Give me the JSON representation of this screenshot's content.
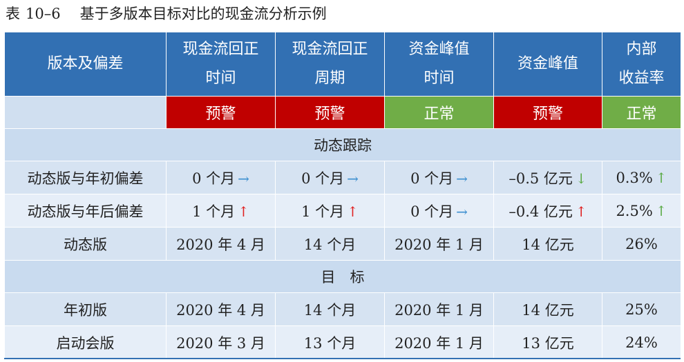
{
  "caption": {
    "label": "表",
    "code": "10–6",
    "title": "基于多版本目标对比的现金流分析示例"
  },
  "colors": {
    "header_bg": "#3270b3",
    "warn": "#c00000",
    "normal": "#70ad47",
    "arrow_right": "#3d8fd0",
    "arrow_up_red": "#e02020",
    "arrow_up_green": "#5aaa45",
    "arrow_down_green": "#5aaa45"
  },
  "header": {
    "col0": "版本及偏差",
    "col1_line1": "现金流回正",
    "col1_line2": "时间",
    "col2_line1": "现金流回正",
    "col2_line2": "周期",
    "col3_line1": "资金峰值",
    "col3_line2": "时间",
    "col4": "资金峰值",
    "col5_line1": "内部",
    "col5_line2": "收益率"
  },
  "status": [
    {
      "text": "预警",
      "color": "#c00000"
    },
    {
      "text": "预警",
      "color": "#c00000"
    },
    {
      "text": "正常",
      "color": "#70ad47"
    },
    {
      "text": "预警",
      "color": "#c00000"
    },
    {
      "text": "正常",
      "color": "#70ad47"
    }
  ],
  "sections": {
    "dynamic": "动态跟踪",
    "target": "目　标"
  },
  "dynamic_rows": [
    {
      "label": "动态版与年初偏差",
      "cells": [
        {
          "value": "0 个月",
          "arrow": "→",
          "arrow_color": "#3d8fd0"
        },
        {
          "value": "0 个月",
          "arrow": "→",
          "arrow_color": "#3d8fd0"
        },
        {
          "value": "0 个月",
          "arrow": "→",
          "arrow_color": "#3d8fd0"
        },
        {
          "value": "–0.5 亿元",
          "arrow": "↓",
          "arrow_color": "#5aaa45"
        },
        {
          "value": "0.3%",
          "arrow": "↑",
          "arrow_color": "#5aaa45"
        }
      ]
    },
    {
      "label": "动态版与年后偏差",
      "cells": [
        {
          "value": "1 个月",
          "arrow": "↑",
          "arrow_color": "#e02020"
        },
        {
          "value": "1 个月",
          "arrow": "↑",
          "arrow_color": "#e02020"
        },
        {
          "value": "0 个月",
          "arrow": "→",
          "arrow_color": "#3d8fd0"
        },
        {
          "value": "–0.4 亿元",
          "arrow": "↑",
          "arrow_color": "#e02020"
        },
        {
          "value": "2.5%",
          "arrow": "↑",
          "arrow_color": "#5aaa45"
        }
      ]
    },
    {
      "label": "动态版",
      "cells": [
        {
          "value": "2020 年 4 月"
        },
        {
          "value": "14 个月"
        },
        {
          "value": "2020 年 1 月"
        },
        {
          "value": "14 亿元"
        },
        {
          "value": "26%"
        }
      ]
    }
  ],
  "target_rows": [
    {
      "label": "年初版",
      "cells": [
        {
          "value": "2020 年 4 月"
        },
        {
          "value": "14 个月"
        },
        {
          "value": "2020 年 1 月"
        },
        {
          "value": "14 亿元"
        },
        {
          "value": "25%"
        }
      ]
    },
    {
      "label": "启动会版",
      "cells": [
        {
          "value": "2020 年 3 月"
        },
        {
          "value": "13 个月"
        },
        {
          "value": "2020 年 1 月"
        },
        {
          "value": "13 亿元"
        },
        {
          "value": "24%"
        }
      ]
    }
  ]
}
